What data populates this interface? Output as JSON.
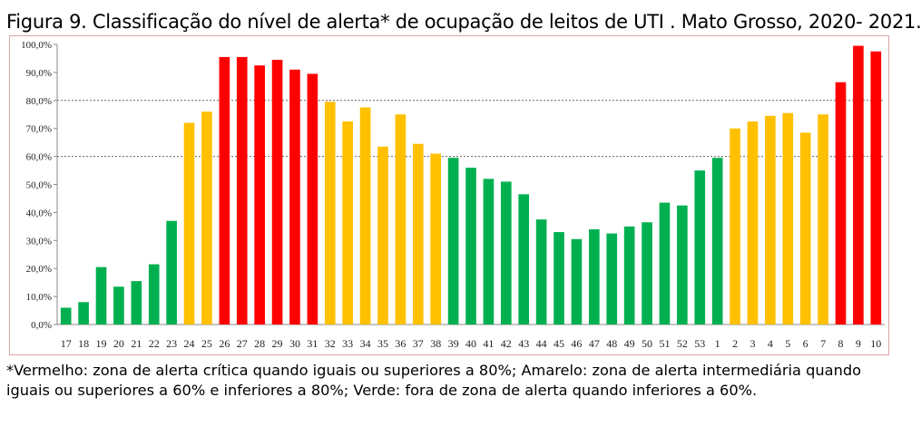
{
  "title": "Figura 9. Classificação do nível de alerta* de ocupação de leitos de UTI . Mato Grosso, 2020- 2021.",
  "footnote": "*Vermelho: zona de alerta crítica quando iguais ou superiores a 80%; Amarelo: zona de alerta intermediária quando iguais ou superiores a 60% e inferiores a 80%; Verde: fora de zona de alerta quando inferiores a 60%.",
  "colors": {
    "red": "#ff0000",
    "yellow": "#ffc000",
    "green": "#00b050"
  },
  "chart_data": {
    "type": "bar",
    "ylim": [
      0,
      100
    ],
    "yticks": [
      "0,0%",
      "10,0%",
      "20,0%",
      "30,0%",
      "40,0%",
      "50,0%",
      "60,0%",
      "70,0%",
      "80,0%",
      "90,0%",
      "100,0%"
    ],
    "reference_lines": [
      60,
      80
    ],
    "categories": [
      "17",
      "18",
      "19",
      "20",
      "21",
      "22",
      "23",
      "24",
      "25",
      "26",
      "27",
      "28",
      "29",
      "30",
      "31",
      "32",
      "33",
      "34",
      "35",
      "36",
      "37",
      "38",
      "39",
      "40",
      "41",
      "42",
      "43",
      "44",
      "45",
      "46",
      "47",
      "48",
      "49",
      "50",
      "51",
      "52",
      "53",
      "1",
      "2",
      "3",
      "4",
      "5",
      "6",
      "7",
      "8",
      "9",
      "10"
    ],
    "values": [
      6,
      8,
      20.5,
      13.5,
      15.5,
      21.5,
      37,
      72,
      76,
      95.5,
      95.5,
      92.5,
      94.5,
      91,
      89.5,
      79.5,
      72.5,
      77.5,
      63.5,
      75,
      64.5,
      61,
      59.5,
      56,
      52,
      51,
      46.5,
      37.5,
      33,
      30.5,
      34,
      32.5,
      35,
      36.5,
      43.5,
      42.5,
      55,
      59.5,
      70,
      72.5,
      74.5,
      75.5,
      68.5,
      75,
      86.5,
      99.5,
      97.5
    ],
    "grid": false
  }
}
